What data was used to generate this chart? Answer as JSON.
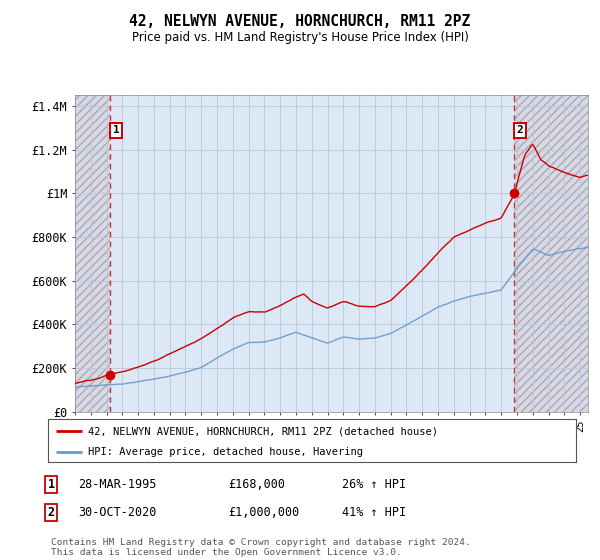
{
  "title": "42, NELWYN AVENUE, HORNCHURCH, RM11 2PZ",
  "subtitle": "Price paid vs. HM Land Registry's House Price Index (HPI)",
  "legend_line1": "42, NELWYN AVENUE, HORNCHURCH, RM11 2PZ (detached house)",
  "legend_line2": "HPI: Average price, detached house, Havering",
  "footer": "Contains HM Land Registry data © Crown copyright and database right 2024.\nThis data is licensed under the Open Government Licence v3.0.",
  "annotation1_label": "1",
  "annotation1_date": "28-MAR-1995",
  "annotation1_price": "£168,000",
  "annotation1_hpi": "26% ↑ HPI",
  "annotation2_label": "2",
  "annotation2_date": "30-OCT-2020",
  "annotation2_price": "£1,000,000",
  "annotation2_hpi": "41% ↑ HPI",
  "hpi_color": "#6699cc",
  "price_color": "#cc0000",
  "bg_hatch_color": "#d8d8e8",
  "plot_bg_color": "#dce8f5",
  "grid_color": "#b8c8d8",
  "ylim": [
    0,
    1450000
  ],
  "yticks": [
    0,
    200000,
    400000,
    600000,
    800000,
    1000000,
    1200000,
    1400000
  ],
  "ytick_labels": [
    "£0",
    "£200K",
    "£400K",
    "£600K",
    "£800K",
    "£1M",
    "£1.2M",
    "£1.4M"
  ],
  "sale1_x": 1995.23,
  "sale1_price": 168000,
  "sale2_x": 2020.83,
  "sale2_price": 1000000,
  "xlim_start": 1993.0,
  "xlim_end": 2025.5
}
